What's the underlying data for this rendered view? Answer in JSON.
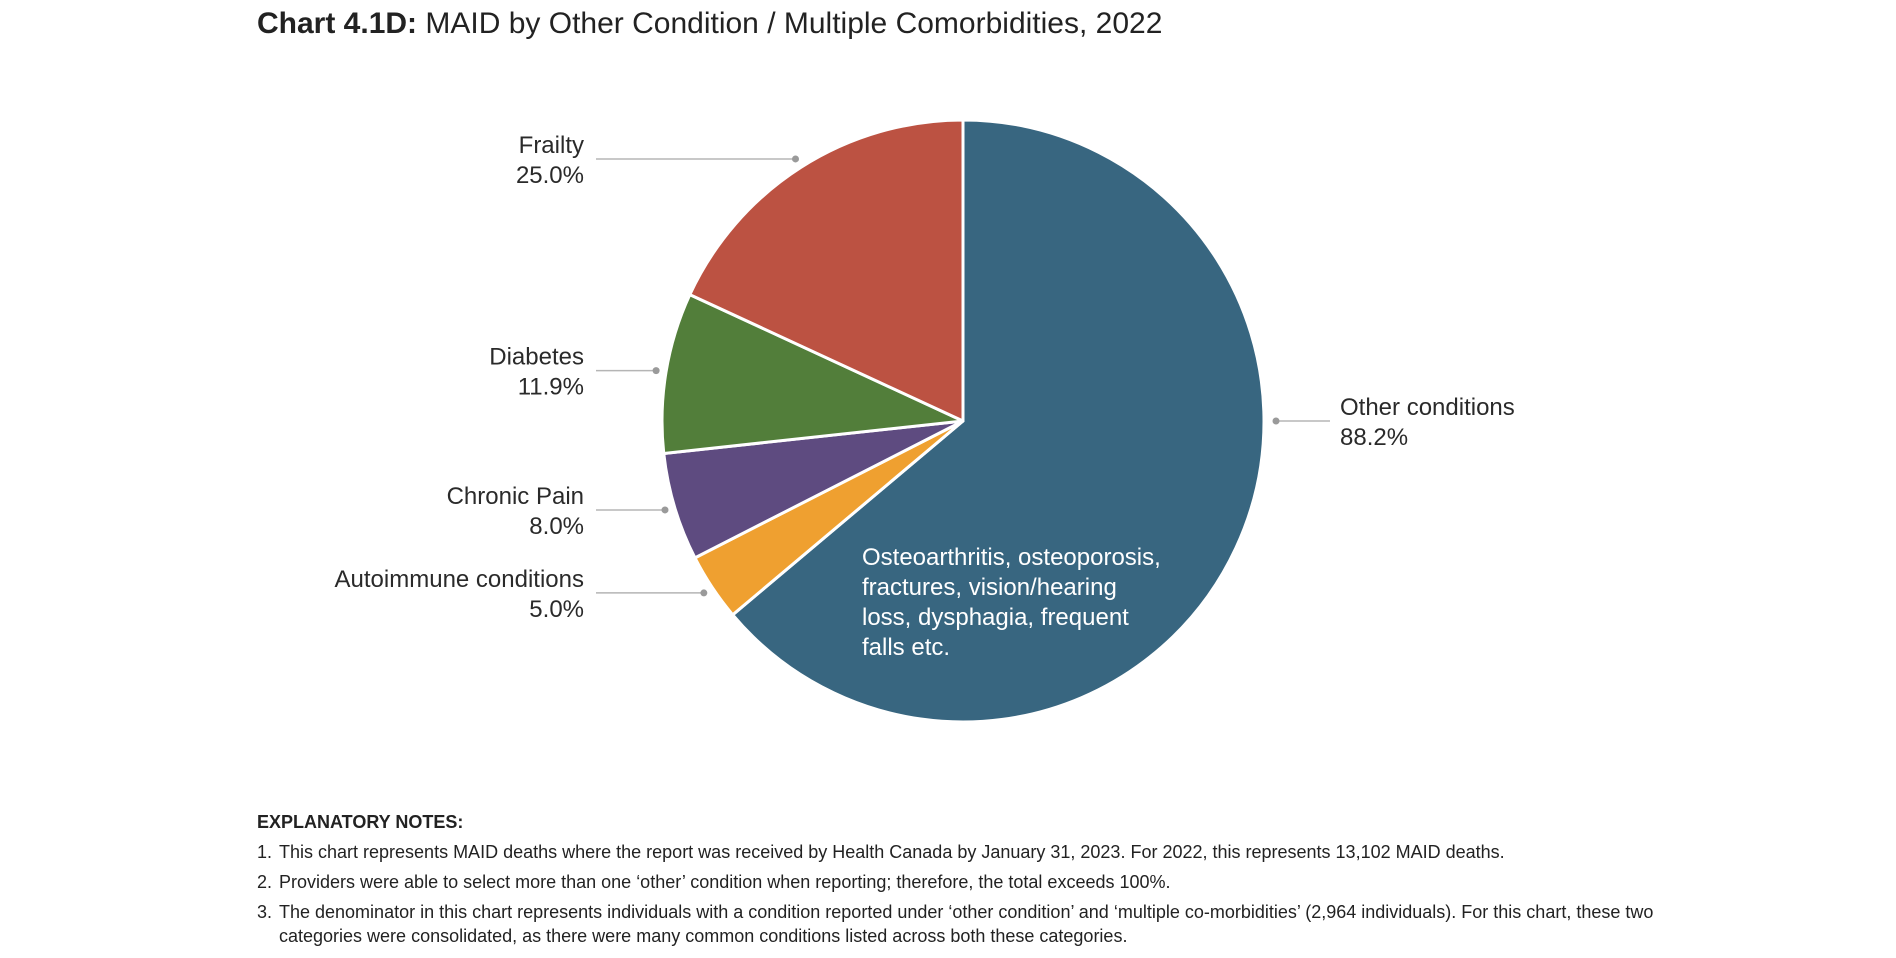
{
  "title": {
    "prefix": "Chart 4.1D:",
    "text": "MAID by Other Condition / Multiple Comorbidities, 2022"
  },
  "chart_data": {
    "type": "pie",
    "slices": [
      {
        "label": "Other conditions",
        "value": 88.2,
        "value_label": "88.2%",
        "color": "#386680"
      },
      {
        "label": "Autoimmune conditions",
        "value": 5.0,
        "value_label": "5.0%",
        "color": "#efa030"
      },
      {
        "label": "Chronic Pain",
        "value": 8.0,
        "value_label": "8.0%",
        "color": "#5e4b80"
      },
      {
        "label": "Diabetes",
        "value": 11.9,
        "value_label": "11.9%",
        "color": "#527e3a"
      },
      {
        "label": "Frailty",
        "value": 25.0,
        "value_label": "25.0%",
        "color": "#bc5242"
      }
    ],
    "annotation": {
      "lines": [
        "Osteoarthritis, osteoporosis,",
        "fractures, vision/hearing",
        "loss, dysphagia, frequent",
        "falls etc."
      ]
    }
  },
  "notes": {
    "heading": "EXPLANATORY NOTES:",
    "items": [
      {
        "num": "1.",
        "text": "This chart represents MAID deaths where the report was received by Health Canada by January 31, 2023. For 2022, this represents 13,102 MAID deaths."
      },
      {
        "num": "2.",
        "text": "Providers were able to select more than one ‘other’ condition when reporting; therefore, the total exceeds 100%."
      },
      {
        "num": "3.",
        "text": "The denominator in this chart represents individuals with a condition reported under ‘other condition’ and ‘multiple co-morbidities’ (2,964 individuals). For this chart, these two categories were consolidated, as there were many common conditions listed across both these categories."
      }
    ]
  }
}
